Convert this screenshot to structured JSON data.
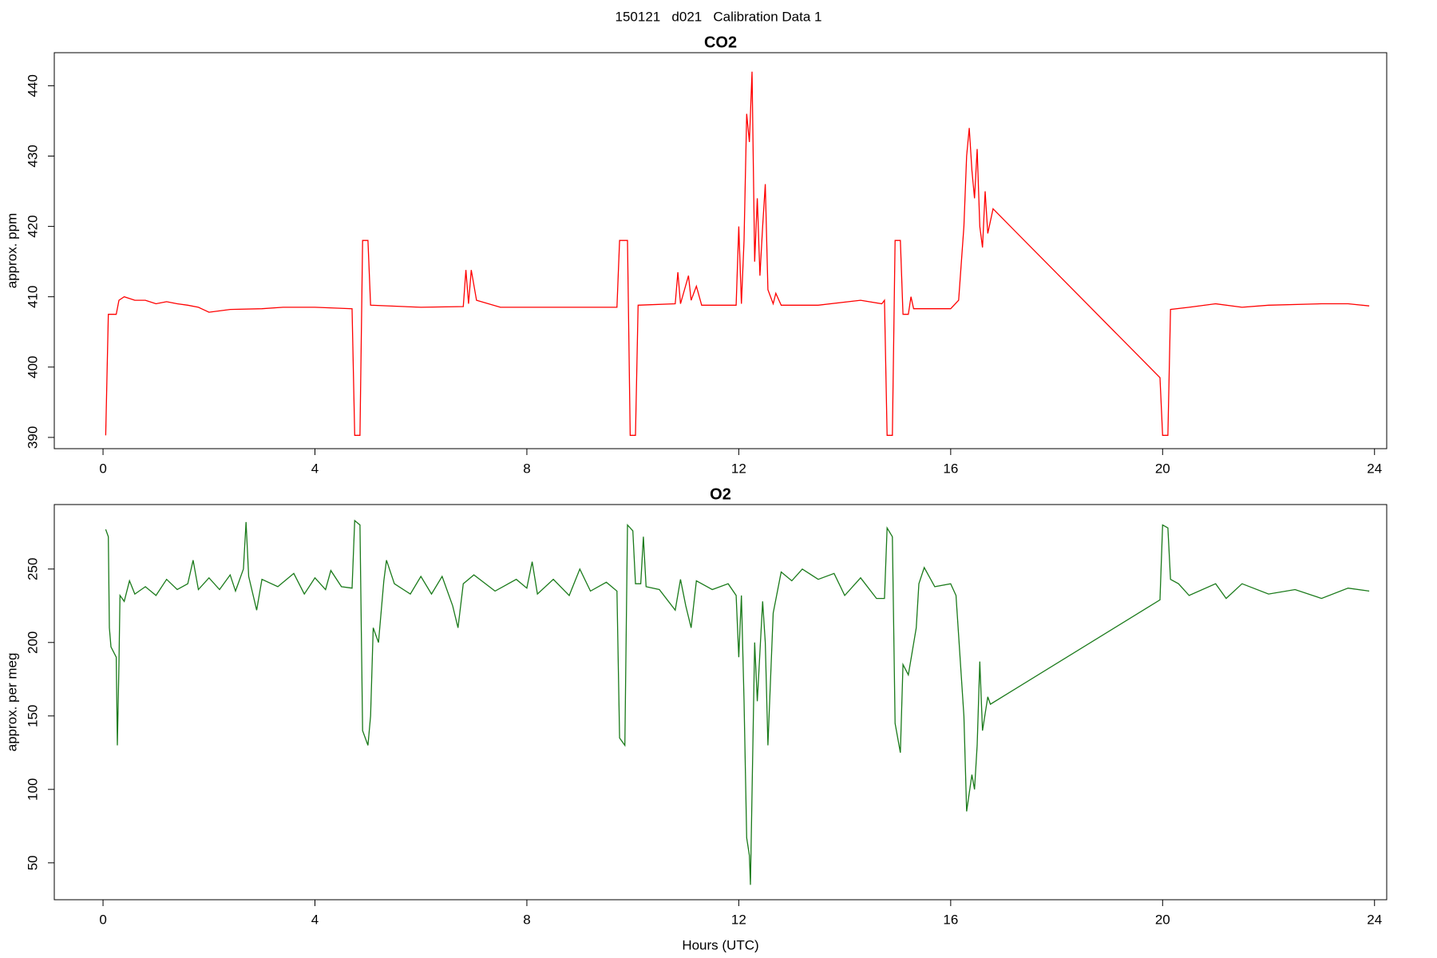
{
  "title": "150121   d021   Calibration Data 1",
  "chart_data": [
    {
      "type": "line",
      "title": "CO2",
      "ylabel": "approx. ppm",
      "color": "#ff0000",
      "xlim": [
        -0.92,
        24.23
      ],
      "xticks": [
        0,
        4,
        8,
        12,
        16,
        20,
        24
      ],
      "ylim": [
        388.4,
        444.7
      ],
      "yticks": [
        390,
        400,
        410,
        420,
        430,
        440
      ],
      "x": [
        0.05,
        0.1,
        0.25,
        0.3,
        0.4,
        0.6,
        0.8,
        1.0,
        1.2,
        1.4,
        1.6,
        1.8,
        2.0,
        2.4,
        3.0,
        3.4,
        4.0,
        4.7,
        4.75,
        4.85,
        4.9,
        5.0,
        5.05,
        6.0,
        6.8,
        6.85,
        6.9,
        6.95,
        7.05,
        7.5,
        8.5,
        9.7,
        9.75,
        9.9,
        9.95,
        10.05,
        10.1,
        10.8,
        10.85,
        10.9,
        11.05,
        11.1,
        11.2,
        11.3,
        11.95,
        12.0,
        12.05,
        12.1,
        12.15,
        12.2,
        12.25,
        12.3,
        12.35,
        12.4,
        12.45,
        12.5,
        12.55,
        12.65,
        12.7,
        12.8,
        13.5,
        14.3,
        14.7,
        14.75,
        14.8,
        14.9,
        14.95,
        15.05,
        15.1,
        15.2,
        15.25,
        15.3,
        16.0,
        16.15,
        16.25,
        16.3,
        16.35,
        16.4,
        16.45,
        16.5,
        16.55,
        16.6,
        16.65,
        16.7,
        16.8,
        19.95,
        20.0,
        20.1,
        20.15,
        20.5,
        21.0,
        21.5,
        22.0,
        23.0,
        23.5,
        23.9
      ],
      "values": [
        390.3,
        407.5,
        407.5,
        409.5,
        410,
        409.5,
        409.5,
        409,
        409.3,
        409,
        408.8,
        408.5,
        407.8,
        408.2,
        408.3,
        408.5,
        408.5,
        408.3,
        390.3,
        390.3,
        418,
        418,
        408.8,
        408.5,
        408.6,
        413.8,
        409,
        413.8,
        409.5,
        408.5,
        408.5,
        408.5,
        418,
        418,
        390.3,
        390.3,
        408.8,
        409,
        413.5,
        409,
        413,
        409.5,
        411.5,
        408.8,
        408.8,
        420,
        409,
        418,
        436,
        432,
        442,
        415,
        424,
        413,
        420,
        426,
        411,
        409,
        410.5,
        408.8,
        408.8,
        409.5,
        409,
        409.5,
        390.3,
        390.3,
        418,
        418,
        407.5,
        407.5,
        410,
        408.3,
        408.3,
        409.5,
        420,
        430,
        434,
        428,
        424,
        431,
        420,
        417,
        425,
        419,
        422.5,
        398.5,
        390.3,
        390.3,
        408.2,
        408.5,
        409,
        408.5,
        408.8,
        409,
        409,
        408.7
      ]
    },
    {
      "type": "line",
      "title": "O2",
      "ylabel": "approx. per meg",
      "xlabel": "Hours (UTC)",
      "color": "#1a7a1a",
      "xlim": [
        -0.92,
        24.23
      ],
      "xticks": [
        0,
        4,
        8,
        12,
        16,
        20,
        24
      ],
      "ylim": [
        24.9,
        293.9
      ],
      "yticks": [
        50,
        100,
        150,
        200,
        250
      ],
      "x": [
        0.05,
        0.1,
        0.12,
        0.15,
        0.25,
        0.27,
        0.3,
        0.32,
        0.4,
        0.5,
        0.6,
        0.8,
        1.0,
        1.2,
        1.4,
        1.6,
        1.7,
        1.8,
        2.0,
        2.2,
        2.4,
        2.5,
        2.65,
        2.7,
        2.75,
        2.9,
        3.0,
        3.3,
        3.6,
        3.8,
        4.0,
        4.2,
        4.3,
        4.5,
        4.7,
        4.75,
        4.85,
        4.9,
        5.0,
        5.05,
        5.1,
        5.2,
        5.3,
        5.35,
        5.5,
        5.8,
        6.0,
        6.2,
        6.4,
        6.6,
        6.7,
        6.8,
        7.0,
        7.4,
        7.8,
        8.0,
        8.1,
        8.2,
        8.5,
        8.8,
        9.0,
        9.2,
        9.5,
        9.7,
        9.75,
        9.85,
        9.9,
        10.0,
        10.05,
        10.15,
        10.2,
        10.25,
        10.5,
        10.8,
        10.9,
        11.0,
        11.1,
        11.2,
        11.5,
        11.8,
        11.95,
        12.0,
        12.05,
        12.1,
        12.15,
        12.2,
        12.22,
        12.3,
        12.35,
        12.45,
        12.5,
        12.55,
        12.65,
        12.8,
        13.0,
        13.2,
        13.5,
        13.8,
        14.0,
        14.3,
        14.6,
        14.75,
        14.8,
        14.9,
        14.95,
        15.05,
        15.1,
        15.2,
        15.35,
        15.4,
        15.5,
        15.7,
        16.0,
        16.1,
        16.25,
        16.3,
        16.4,
        16.45,
        16.5,
        16.55,
        16.6,
        16.7,
        16.75,
        19.95,
        20.0,
        20.1,
        20.15,
        20.3,
        20.5,
        21.0,
        21.2,
        21.5,
        22.0,
        22.5,
        23.0,
        23.5,
        23.9
      ],
      "values": [
        277,
        272,
        210,
        197,
        190,
        130,
        185,
        232,
        228,
        242,
        233,
        238,
        232,
        243,
        236,
        240,
        256,
        236,
        244,
        236,
        246,
        235,
        250,
        282,
        245,
        222,
        243,
        238,
        247,
        233,
        244,
        236,
        249,
        238,
        237,
        283,
        280,
        140,
        130,
        150,
        210,
        200,
        242,
        256,
        240,
        233,
        245,
        233,
        245,
        225,
        210,
        240,
        246,
        235,
        243,
        237,
        255,
        233,
        243,
        232,
        250,
        235,
        241,
        235,
        135,
        130,
        280,
        276,
        240,
        240,
        272,
        238,
        236,
        222,
        243,
        225,
        210,
        242,
        236,
        240,
        232,
        190,
        232,
        160,
        67,
        55,
        35,
        200,
        160,
        228,
        200,
        130,
        220,
        248,
        242,
        250,
        243,
        247,
        232,
        244,
        230,
        230,
        278,
        272,
        145,
        125,
        185,
        178,
        210,
        240,
        251,
        238,
        240,
        232,
        150,
        85,
        110,
        100,
        130,
        187,
        140,
        163,
        158,
        229,
        280,
        278,
        243,
        240,
        232,
        240,
        230,
        240,
        233,
        236,
        230,
        237,
        235
      ]
    }
  ]
}
